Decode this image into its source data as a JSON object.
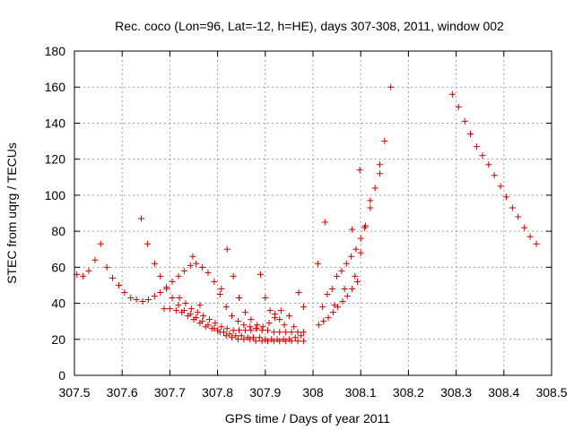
{
  "chart_data": {
    "type": "scatter",
    "title": "Rec. coco (Lon=96, Lat=-12, h=HE), days 307-308, 2011, window 002",
    "xlabel": "GPS time / Days of year 2011",
    "ylabel": "STEC from uqrg / TECUs",
    "xlim": [
      307.5,
      308.5
    ],
    "ylim": [
      0,
      180
    ],
    "x_ticks": [
      307.5,
      307.6,
      307.7,
      307.8,
      307.9,
      308,
      308.1,
      308.2,
      308.3,
      308.4,
      308.5
    ],
    "x_tick_labels": [
      "307.5",
      "307.6",
      "307.7",
      "307.8",
      "307.9",
      "308",
      "308.1",
      "308.2",
      "308.3",
      "308.4",
      "308.5"
    ],
    "y_ticks": [
      0,
      20,
      40,
      60,
      80,
      100,
      120,
      140,
      160,
      180
    ],
    "y_tick_labels": [
      "0",
      "20",
      "40",
      "60",
      "80",
      "100",
      "120",
      "140",
      "160",
      "180"
    ],
    "grid": true,
    "marker": "+",
    "color": "#cc0000",
    "series": [
      {
        "name": "STEC",
        "points": [
          [
            307.505,
            56
          ],
          [
            307.518,
            55
          ],
          [
            307.53,
            58
          ],
          [
            307.543,
            64
          ],
          [
            307.555,
            73
          ],
          [
            307.568,
            60
          ],
          [
            307.58,
            54
          ],
          [
            307.593,
            50
          ],
          [
            307.605,
            46
          ],
          [
            307.618,
            43
          ],
          [
            307.63,
            42
          ],
          [
            307.643,
            41
          ],
          [
            307.655,
            42
          ],
          [
            307.668,
            44
          ],
          [
            307.68,
            46
          ],
          [
            307.693,
            49
          ],
          [
            307.705,
            52
          ],
          [
            307.718,
            55
          ],
          [
            307.73,
            58
          ],
          [
            307.743,
            61
          ],
          [
            307.755,
            62
          ],
          [
            307.768,
            60
          ],
          [
            307.78,
            57
          ],
          [
            307.793,
            52
          ],
          [
            307.805,
            45
          ],
          [
            307.818,
            38
          ],
          [
            307.83,
            33
          ],
          [
            307.843,
            30
          ],
          [
            307.855,
            28
          ],
          [
            307.868,
            27
          ],
          [
            307.88,
            26
          ],
          [
            307.893,
            25
          ],
          [
            307.905,
            25
          ],
          [
            307.918,
            24
          ],
          [
            307.93,
            24
          ],
          [
            307.943,
            24
          ],
          [
            307.955,
            24
          ],
          [
            307.968,
            24
          ],
          [
            307.98,
            24
          ],
          [
            307.64,
            87
          ],
          [
            307.653,
            73
          ],
          [
            307.668,
            62
          ],
          [
            307.68,
            55
          ],
          [
            307.693,
            48
          ],
          [
            307.705,
            43
          ],
          [
            307.718,
            39
          ],
          [
            307.73,
            36
          ],
          [
            307.743,
            34
          ],
          [
            307.755,
            32
          ],
          [
            307.768,
            30
          ],
          [
            307.78,
            28
          ],
          [
            307.793,
            26
          ],
          [
            307.805,
            24
          ],
          [
            307.818,
            22
          ],
          [
            307.83,
            21
          ],
          [
            307.843,
            20
          ],
          [
            307.855,
            20
          ],
          [
            307.868,
            20
          ],
          [
            307.88,
            19
          ],
          [
            307.893,
            19
          ],
          [
            307.905,
            19
          ],
          [
            307.918,
            19
          ],
          [
            307.93,
            19
          ],
          [
            307.943,
            19
          ],
          [
            307.955,
            19
          ],
          [
            307.968,
            19
          ],
          [
            307.98,
            19
          ],
          [
            307.688,
            37
          ],
          [
            307.7,
            37
          ],
          [
            307.713,
            36
          ],
          [
            307.725,
            35
          ],
          [
            307.738,
            33
          ],
          [
            307.75,
            31
          ],
          [
            307.763,
            29
          ],
          [
            307.775,
            27
          ],
          [
            307.788,
            26
          ],
          [
            307.8,
            25
          ],
          [
            307.813,
            24
          ],
          [
            307.825,
            23
          ],
          [
            307.838,
            22
          ],
          [
            307.85,
            22
          ],
          [
            307.863,
            21
          ],
          [
            307.875,
            21
          ],
          [
            307.888,
            21
          ],
          [
            307.9,
            20
          ],
          [
            307.913,
            20
          ],
          [
            307.925,
            20
          ],
          [
            307.938,
            20
          ],
          [
            307.95,
            20
          ],
          [
            307.963,
            21
          ],
          [
            307.975,
            22
          ],
          [
            307.72,
            43
          ],
          [
            307.733,
            40
          ],
          [
            307.745,
            37
          ],
          [
            307.758,
            35
          ],
          [
            307.77,
            33
          ],
          [
            307.783,
            31
          ],
          [
            307.795,
            29
          ],
          [
            307.808,
            27
          ],
          [
            307.82,
            26
          ],
          [
            307.833,
            25
          ],
          [
            307.845,
            25
          ],
          [
            307.858,
            25
          ],
          [
            307.87,
            25
          ],
          [
            307.883,
            26
          ],
          [
            307.895,
            27
          ],
          [
            307.908,
            29
          ],
          [
            307.92,
            32
          ],
          [
            307.933,
            36
          ],
          [
            307.748,
            66
          ],
          [
            307.763,
            39
          ],
          [
            307.808,
            48
          ],
          [
            307.82,
            70
          ],
          [
            307.833,
            55
          ],
          [
            307.845,
            43
          ],
          [
            307.858,
            35
          ],
          [
            307.87,
            31
          ],
          [
            307.883,
            28
          ],
          [
            307.89,
            56
          ],
          [
            307.9,
            43
          ],
          [
            307.91,
            36
          ],
          [
            307.92,
            34
          ],
          [
            307.93,
            31
          ],
          [
            307.94,
            28
          ],
          [
            307.95,
            33
          ],
          [
            307.96,
            27
          ],
          [
            307.97,
            46
          ],
          [
            307.98,
            38
          ],
          [
            308.01,
            62
          ],
          [
            308.02,
            38
          ],
          [
            308.03,
            45
          ],
          [
            308.04,
            48
          ],
          [
            308.05,
            55
          ],
          [
            308.06,
            58
          ],
          [
            308.07,
            62
          ],
          [
            308.08,
            66
          ],
          [
            308.09,
            70
          ],
          [
            308.1,
            76
          ],
          [
            308.11,
            83
          ],
          [
            308.12,
            93
          ],
          [
            308.13,
            104
          ],
          [
            308.14,
            117
          ],
          [
            308.15,
            130
          ],
          [
            308.163,
            160
          ],
          [
            308.012,
            28
          ],
          [
            308.022,
            30
          ],
          [
            308.032,
            32
          ],
          [
            308.042,
            35
          ],
          [
            308.052,
            38
          ],
          [
            308.062,
            41
          ],
          [
            308.072,
            44
          ],
          [
            308.082,
            48
          ],
          [
            308.093,
            52
          ],
          [
            308.025,
            85
          ],
          [
            308.045,
            39
          ],
          [
            308.066,
            48
          ],
          [
            308.088,
            55
          ],
          [
            308.098,
            114
          ],
          [
            308.108,
            82
          ],
          [
            308.12,
            97
          ],
          [
            308.14,
            112
          ],
          [
            308.082,
            81
          ],
          [
            308.1,
            68
          ],
          [
            308.292,
            156
          ],
          [
            308.305,
            149
          ],
          [
            308.318,
            141
          ],
          [
            308.33,
            134
          ],
          [
            308.343,
            127
          ],
          [
            308.355,
            122
          ],
          [
            308.368,
            117
          ],
          [
            308.38,
            111
          ],
          [
            308.393,
            105
          ],
          [
            308.405,
            99
          ],
          [
            308.418,
            93
          ],
          [
            308.43,
            88
          ],
          [
            308.443,
            82
          ],
          [
            308.455,
            77
          ],
          [
            308.468,
            73
          ]
        ]
      }
    ]
  }
}
